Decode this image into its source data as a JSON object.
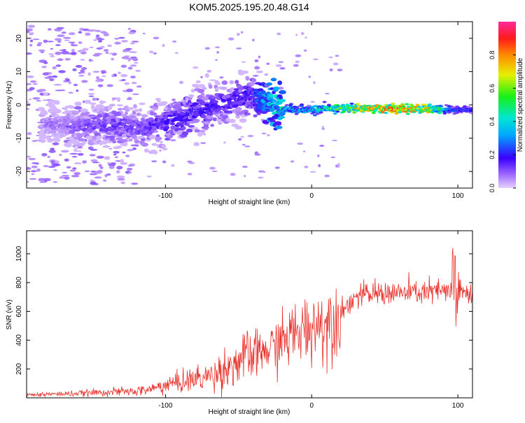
{
  "title": "KOM5.2025.195.20.48.G14",
  "colorbar": {
    "label": "Normalized spectral amplitude",
    "ticks": [
      "0.0",
      "0.2",
      "0.4",
      "0.6",
      "0.8"
    ],
    "tick_values": [
      0.0,
      0.2,
      0.4,
      0.6,
      0.8
    ],
    "range": [
      0,
      1
    ]
  },
  "chart_data": [
    {
      "type": "heatmap",
      "xlabel": "Height of straight line (km)",
      "ylabel": "Frequency (Hz)",
      "xlim": [
        -195,
        110
      ],
      "ylim": [
        -25,
        25
      ],
      "xticks": [
        -100,
        0,
        100
      ],
      "xtick_labels": [
        "-100",
        "0",
        "100"
      ],
      "yticks": [
        -20,
        -10,
        0,
        10,
        20
      ],
      "ytick_labels": [
        "-20",
        "-10",
        "0",
        "10",
        "20"
      ],
      "ridge": {
        "x": [
          -185,
          -160,
          -140,
          -120,
          -100,
          -85,
          -70,
          -55,
          -40,
          -25,
          -10,
          0,
          20,
          40,
          60,
          80,
          95,
          105
        ],
        "freq": [
          -5.5,
          -6.5,
          -6,
          -6.5,
          -5.5,
          -3,
          -1,
          1,
          3,
          -0.5,
          -1.5,
          -1.5,
          -1.0,
          -1.0,
          -1.2,
          -1.3,
          -1.5,
          -1.5
        ],
        "amplitude": [
          0.08,
          0.12,
          0.15,
          0.15,
          0.18,
          0.2,
          0.18,
          0.18,
          0.2,
          0.45,
          0.35,
          0.4,
          0.6,
          0.8,
          0.9,
          0.75,
          0.3,
          0.25
        ]
      }
    },
    {
      "type": "line",
      "xlabel": "Height of straight line (km)",
      "ylabel": "SNR (v/v)",
      "xlim": [
        -195,
        110
      ],
      "ylim": [
        0,
        1160
      ],
      "xticks": [
        -100,
        0,
        100
      ],
      "xtick_labels": [
        "-100",
        "0",
        "100"
      ],
      "yticks": [
        200,
        400,
        600,
        800,
        1000
      ],
      "ytick_labels": [
        "200",
        "400",
        "600",
        "800",
        "1000"
      ],
      "series": [
        {
          "color": "#e8322c",
          "x": [
            -195,
            -180,
            -160,
            -140,
            -120,
            -110,
            -100,
            -90,
            -80,
            -70,
            -60,
            -50,
            -40,
            -30,
            -20,
            -10,
            0,
            10,
            20,
            30,
            40,
            50,
            60,
            70,
            80,
            90,
            95,
            98,
            100,
            105,
            110
          ],
          "values": [
            20,
            25,
            30,
            40,
            45,
            60,
            90,
            110,
            130,
            150,
            200,
            250,
            300,
            330,
            400,
            450,
            500,
            520,
            600,
            700,
            720,
            730,
            725,
            730,
            735,
            740,
            730,
            700,
            720,
            730,
            720
          ]
        }
      ]
    }
  ]
}
